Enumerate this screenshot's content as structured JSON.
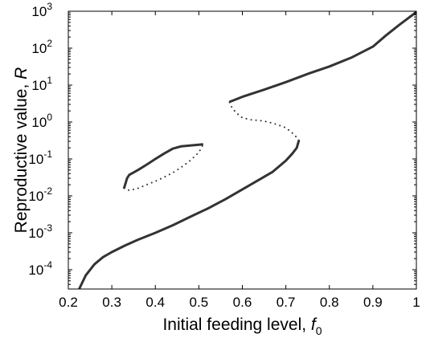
{
  "chart_data": {
    "type": "line",
    "title": "",
    "xlabel": "Initial feeding level, ",
    "xlabel_symbol": "f",
    "xlabel_subscript": "0",
    "ylabel": "Reproductive value, ",
    "ylabel_symbol": "R",
    "x_scale": "linear",
    "y_scale": "log",
    "xlim": [
      0.2,
      1.0
    ],
    "ylim": [
      3e-05,
      1000
    ],
    "x_ticks": [
      0.2,
      0.3,
      0.4,
      0.5,
      0.6,
      0.7,
      0.8,
      0.9,
      1.0
    ],
    "x_tick_labels": [
      "0.2",
      "0.3",
      "0.4",
      "0.5",
      "0.6",
      "0.7",
      "0.8",
      "0.9",
      "1"
    ],
    "y_ticks": [
      {
        "value": 0.0001,
        "base": "10",
        "exp": "-4"
      },
      {
        "value": 0.001,
        "base": "10",
        "exp": "-3"
      },
      {
        "value": 0.01,
        "base": "10",
        "exp": "-2"
      },
      {
        "value": 0.1,
        "base": "10",
        "exp": "-1"
      },
      {
        "value": 1,
        "base": "10",
        "exp": "0"
      },
      {
        "value": 10,
        "base": "10",
        "exp": "1"
      },
      {
        "value": 100,
        "base": "10",
        "exp": "2"
      },
      {
        "value": 1000,
        "base": "10",
        "exp": "3"
      }
    ],
    "grid": false,
    "legend": "none",
    "line_color": "#333333",
    "series": [
      {
        "style": "solid",
        "x": [
          0.225,
          0.24,
          0.26,
          0.28,
          0.3,
          0.33,
          0.36,
          0.4,
          0.44,
          0.48,
          0.52,
          0.56,
          0.6,
          0.64,
          0.67,
          0.7,
          0.715,
          0.725,
          0.73
        ],
        "y": [
          3e-05,
          7e-05,
          0.00014,
          0.00022,
          0.0003,
          0.00045,
          0.00065,
          0.001,
          0.0016,
          0.0027,
          0.0045,
          0.008,
          0.015,
          0.028,
          0.045,
          0.09,
          0.14,
          0.2,
          0.32
        ]
      },
      {
        "style": "dotted",
        "x": [
          0.73,
          0.72,
          0.7,
          0.68,
          0.66,
          0.64,
          0.62,
          0.6,
          0.585,
          0.575,
          0.57
        ],
        "y": [
          0.32,
          0.45,
          0.7,
          0.85,
          1.0,
          1.1,
          1.15,
          1.3,
          1.8,
          2.6,
          3.5
        ]
      },
      {
        "style": "solid",
        "x": [
          0.57,
          0.6,
          0.65,
          0.7,
          0.75,
          0.8,
          0.85,
          0.9,
          0.93,
          0.96,
          1.0
        ],
        "y": [
          3.5,
          4.8,
          7.5,
          12,
          20,
          32,
          55,
          110,
          220,
          420,
          950
        ]
      },
      {
        "style": "solid",
        "x": [
          0.328,
          0.335,
          0.34,
          0.36,
          0.38,
          0.4,
          0.42,
          0.44,
          0.46,
          0.48,
          0.51
        ],
        "y": [
          0.016,
          0.03,
          0.037,
          0.05,
          0.07,
          0.1,
          0.14,
          0.19,
          0.22,
          0.23,
          0.25
        ]
      },
      {
        "style": "dotted",
        "x": [
          0.328,
          0.34,
          0.36,
          0.38,
          0.4,
          0.42,
          0.44,
          0.46,
          0.48,
          0.5,
          0.51
        ],
        "y": [
          0.016,
          0.014,
          0.016,
          0.02,
          0.025,
          0.032,
          0.042,
          0.06,
          0.09,
          0.15,
          0.25
        ]
      }
    ]
  }
}
